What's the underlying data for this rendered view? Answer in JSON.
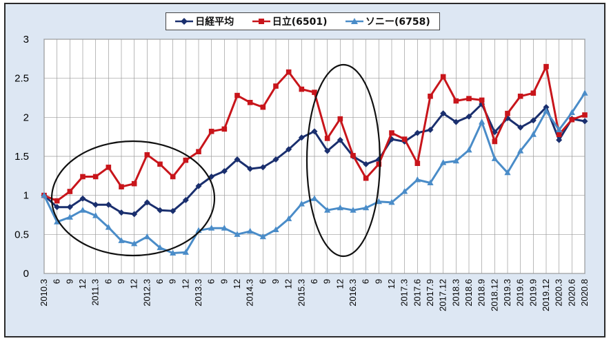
{
  "chart_data": {
    "type": "line",
    "title": "",
    "xlabel": "",
    "ylabel": "",
    "ylim": [
      0,
      3
    ],
    "yticks": [
      "0",
      "0.5",
      "1",
      "1.5",
      "2",
      "2.5",
      "3"
    ],
    "categories": [
      "2010.3",
      "6",
      "9",
      "12",
      "2011.3",
      "6",
      "9",
      "12",
      "2012.3",
      "6",
      "9",
      "12",
      "2013.3",
      "6",
      "9",
      "12",
      "2014.3",
      "6",
      "9",
      "12",
      "2015.3",
      "6",
      "9",
      "12",
      "2016.3",
      "6",
      "9",
      "12",
      "2017.3",
      "2017.6",
      "2017.9",
      "2017.12",
      "2018.3",
      "2018.6",
      "2018.9",
      "2018.12",
      "2019.3",
      "2019.6",
      "2019.9",
      "2019.12",
      "2020.3",
      "2020.6",
      "2020.8"
    ],
    "series": [
      {
        "name": "日経平均",
        "color": "#1a2f6e",
        "marker": "diamond",
        "values": [
          1.0,
          0.85,
          0.85,
          0.96,
          0.88,
          0.88,
          0.78,
          0.76,
          0.91,
          0.81,
          0.8,
          0.94,
          1.12,
          1.24,
          1.31,
          1.46,
          1.34,
          1.36,
          1.46,
          1.59,
          1.74,
          1.82,
          1.57,
          1.71,
          1.5,
          1.4,
          1.46,
          1.72,
          1.69,
          1.8,
          1.84,
          2.05,
          1.94,
          2.01,
          2.17,
          1.81,
          1.99,
          1.87,
          1.96,
          2.13,
          1.71,
          1.98,
          1.95
        ]
      },
      {
        "name": "日立(6501)",
        "color": "#c8151b",
        "marker": "square",
        "values": [
          1.0,
          0.93,
          1.05,
          1.24,
          1.24,
          1.36,
          1.11,
          1.15,
          1.52,
          1.4,
          1.24,
          1.45,
          1.56,
          1.82,
          1.85,
          2.28,
          2.19,
          2.13,
          2.4,
          2.58,
          2.36,
          2.32,
          1.73,
          1.98,
          1.51,
          1.22,
          1.4,
          1.8,
          1.72,
          1.41,
          2.27,
          2.52,
          2.21,
          2.24,
          2.22,
          1.69,
          2.05,
          2.27,
          2.31,
          2.65,
          1.78,
          1.97,
          2.03
        ]
      },
      {
        "name": "ソニー(6758)",
        "color": "#4a8cc8",
        "marker": "triangle",
        "values": [
          1.0,
          0.66,
          0.72,
          0.81,
          0.74,
          0.59,
          0.42,
          0.38,
          0.47,
          0.33,
          0.26,
          0.27,
          0.55,
          0.58,
          0.58,
          0.5,
          0.54,
          0.47,
          0.56,
          0.7,
          0.89,
          0.96,
          0.81,
          0.84,
          0.81,
          0.84,
          0.92,
          0.91,
          1.05,
          1.2,
          1.16,
          1.42,
          1.44,
          1.58,
          1.94,
          1.47,
          1.29,
          1.57,
          1.78,
          2.08,
          1.84,
          2.06,
          2.31
        ]
      }
    ],
    "annotations": [
      "ellipse-2010-2013",
      "ellipse-2015-2016"
    ]
  },
  "legend": {
    "nikkei": "日経平均",
    "hitachi": "日立(6501)",
    "sony": "ソニー(6758)"
  }
}
